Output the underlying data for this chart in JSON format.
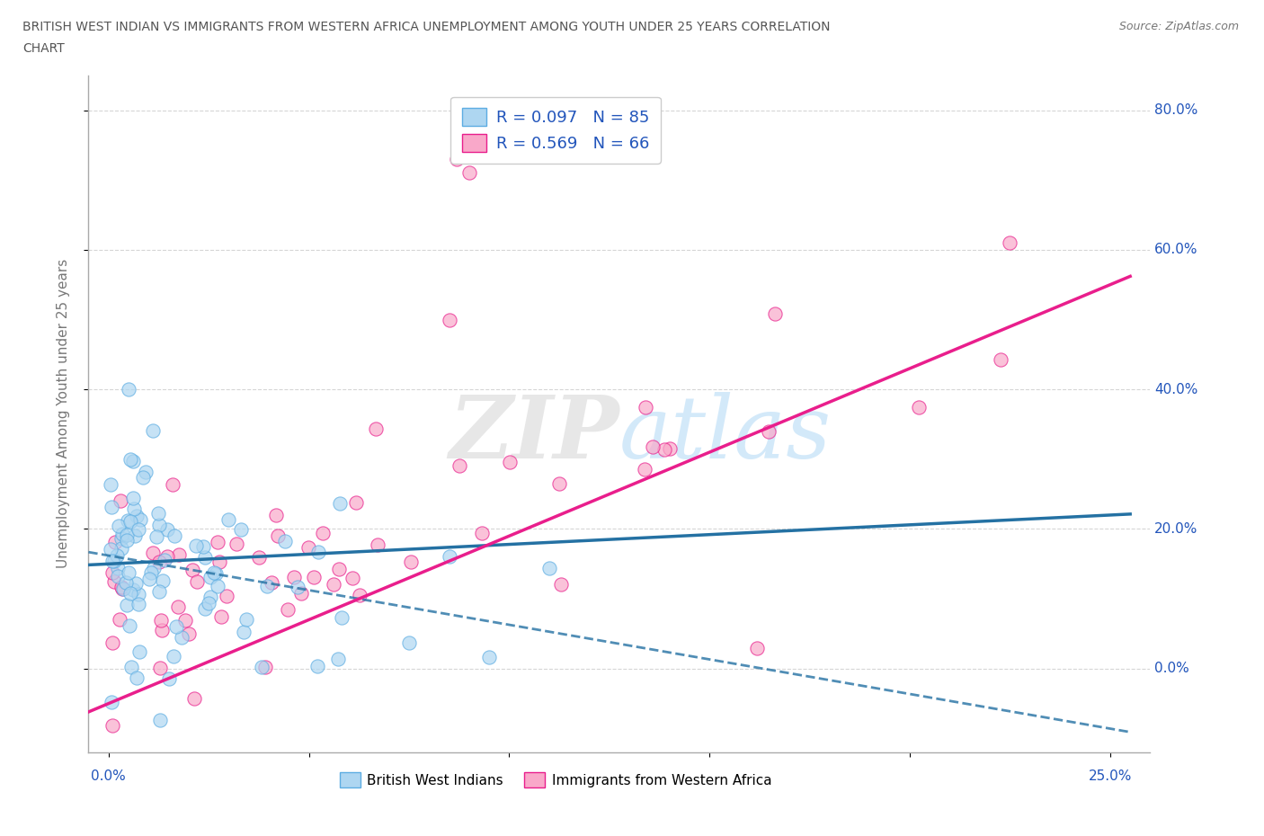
{
  "title_line1": "BRITISH WEST INDIAN VS IMMIGRANTS FROM WESTERN AFRICA UNEMPLOYMENT AMONG YOUTH UNDER 25 YEARS CORRELATION",
  "title_line2": "CHART",
  "source": "Source: ZipAtlas.com",
  "ylabel": "Unemployment Among Youth under 25 years",
  "ytick_vals": [
    0,
    20,
    40,
    60,
    80
  ],
  "ytick_labels": [
    "0.0%",
    "20.0%",
    "40.0%",
    "60.0%",
    "80.0%"
  ],
  "xtick_vals": [
    0,
    5,
    10,
    15,
    20,
    25
  ],
  "xlim": [
    -0.5,
    26
  ],
  "ylim": [
    -12,
    85
  ],
  "watermark": "ZIPatlas",
  "legend_r1": "R = 0.097",
  "legend_n1": "N = 85",
  "legend_r2": "R = 0.569",
  "legend_n2": "N = 66",
  "blue_color": "#AED6F1",
  "blue_edge": "#5DADE2",
  "pink_color": "#F9A8C9",
  "pink_edge": "#E91E8C",
  "blue_line_color": "#2471A3",
  "pink_line_color": "#E91E8C",
  "legend_text_color": "#2255BB",
  "grid_color": "#CCCCCC",
  "title_color": "#555555"
}
